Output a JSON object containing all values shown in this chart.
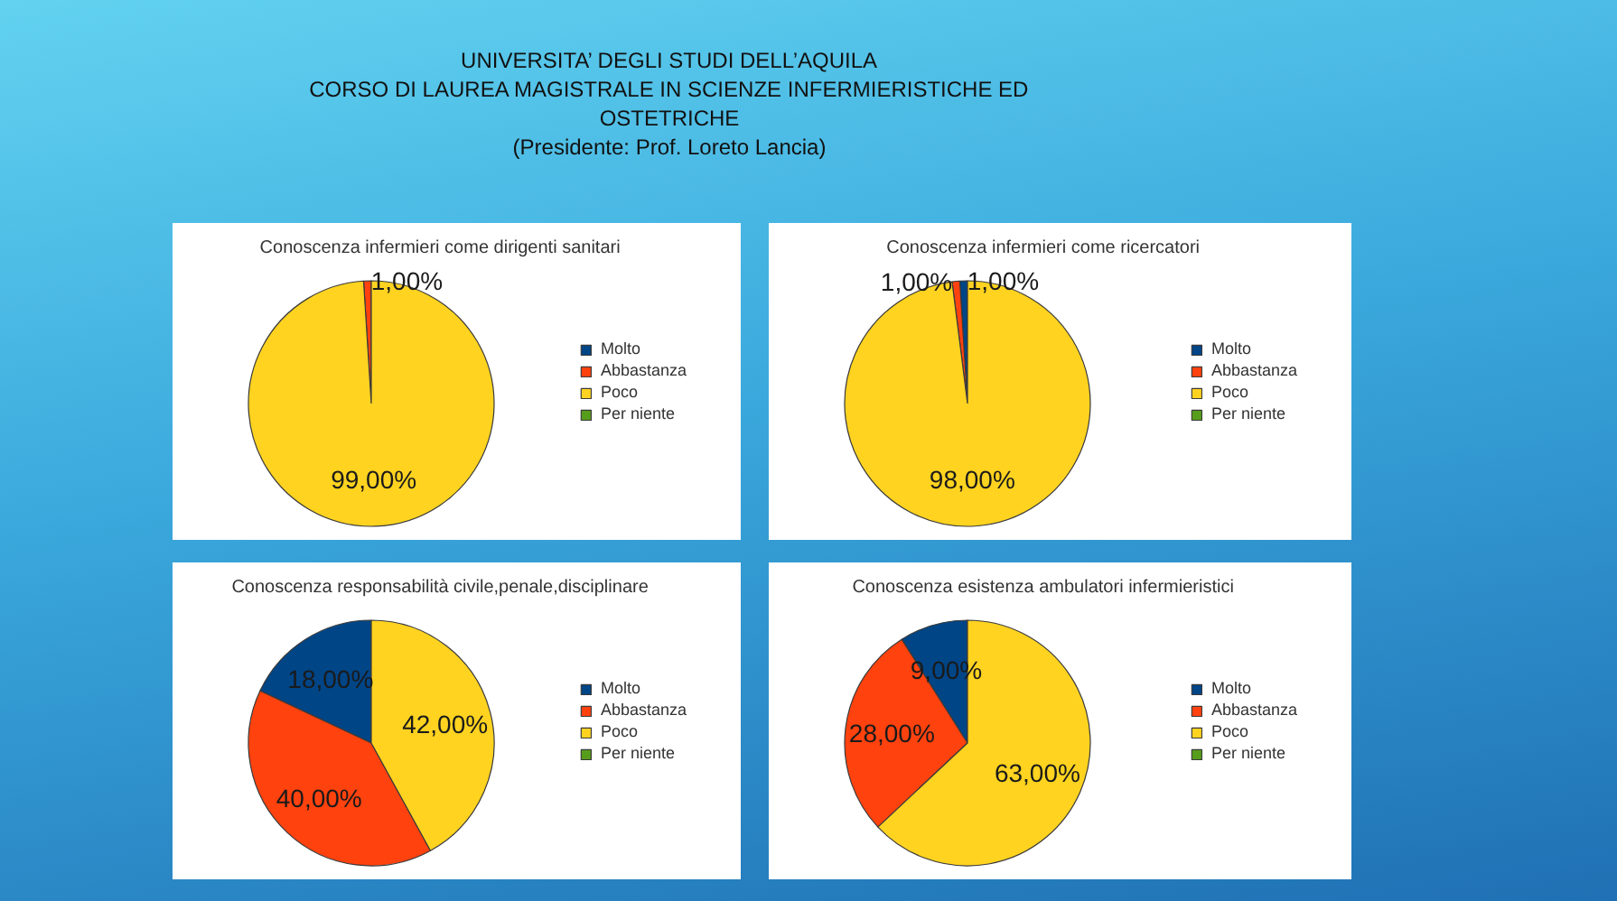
{
  "chart_data": [
    {
      "type": "other",
      "title": "UNIVERSITA’ DEGLI STUDI DELL’AQUILA",
      "subtitle": "CORSO DI LAUREA MAGISTRALE IN SCIENZE INFERMIERISTICHE ED OSTETRICHE",
      "annotations": [
        "(Presidente: Prof. Loreto Lancia)"
      ]
    },
    {
      "type": "pie",
      "title": "Conoscenza infermieri come dirigenti sanitari",
      "categories": [
        "Molto",
        "Abbastanza",
        "Poco",
        "Per niente"
      ],
      "values": [
        0,
        1,
        99,
        0
      ],
      "colors": [
        "#004586",
        "#ff420e",
        "#ffd320",
        "#579d1c"
      ],
      "value_labels": [
        null,
        "1,00%",
        "99,00%",
        null
      ],
      "legend": "right"
    },
    {
      "type": "pie",
      "title": "Conoscenza infermieri come ricercatori",
      "categories": [
        "Molto",
        "Abbastanza",
        "Poco",
        "Per niente"
      ],
      "values": [
        1,
        1,
        98,
        0
      ],
      "colors": [
        "#004586",
        "#ff420e",
        "#ffd320",
        "#579d1c"
      ],
      "value_labels": [
        "1,00%",
        "1,00%",
        "98,00%",
        null
      ],
      "legend": "right"
    },
    {
      "type": "pie",
      "title": "Conoscenza responsabilità civile,penale,disciplinare",
      "categories": [
        "Molto",
        "Abbastanza",
        "Poco",
        "Per niente"
      ],
      "values": [
        18,
        40,
        42,
        0
      ],
      "colors": [
        "#004586",
        "#ff420e",
        "#ffd320",
        "#579d1c"
      ],
      "value_labels": [
        "18,00%",
        "40,00%",
        "42,00%",
        null
      ],
      "legend": "right"
    },
    {
      "type": "pie",
      "title": "Conoscenza esistenza ambulatori infermieristici",
      "categories": [
        "Molto",
        "Abbastanza",
        "Poco",
        "Per niente"
      ],
      "values": [
        9,
        28,
        63,
        0
      ],
      "colors": [
        "#004586",
        "#ff420e",
        "#ffd320",
        "#579d1c"
      ],
      "value_labels": [
        "9,00%",
        "28,00%",
        "63,00%",
        null
      ],
      "legend": "right"
    }
  ]
}
